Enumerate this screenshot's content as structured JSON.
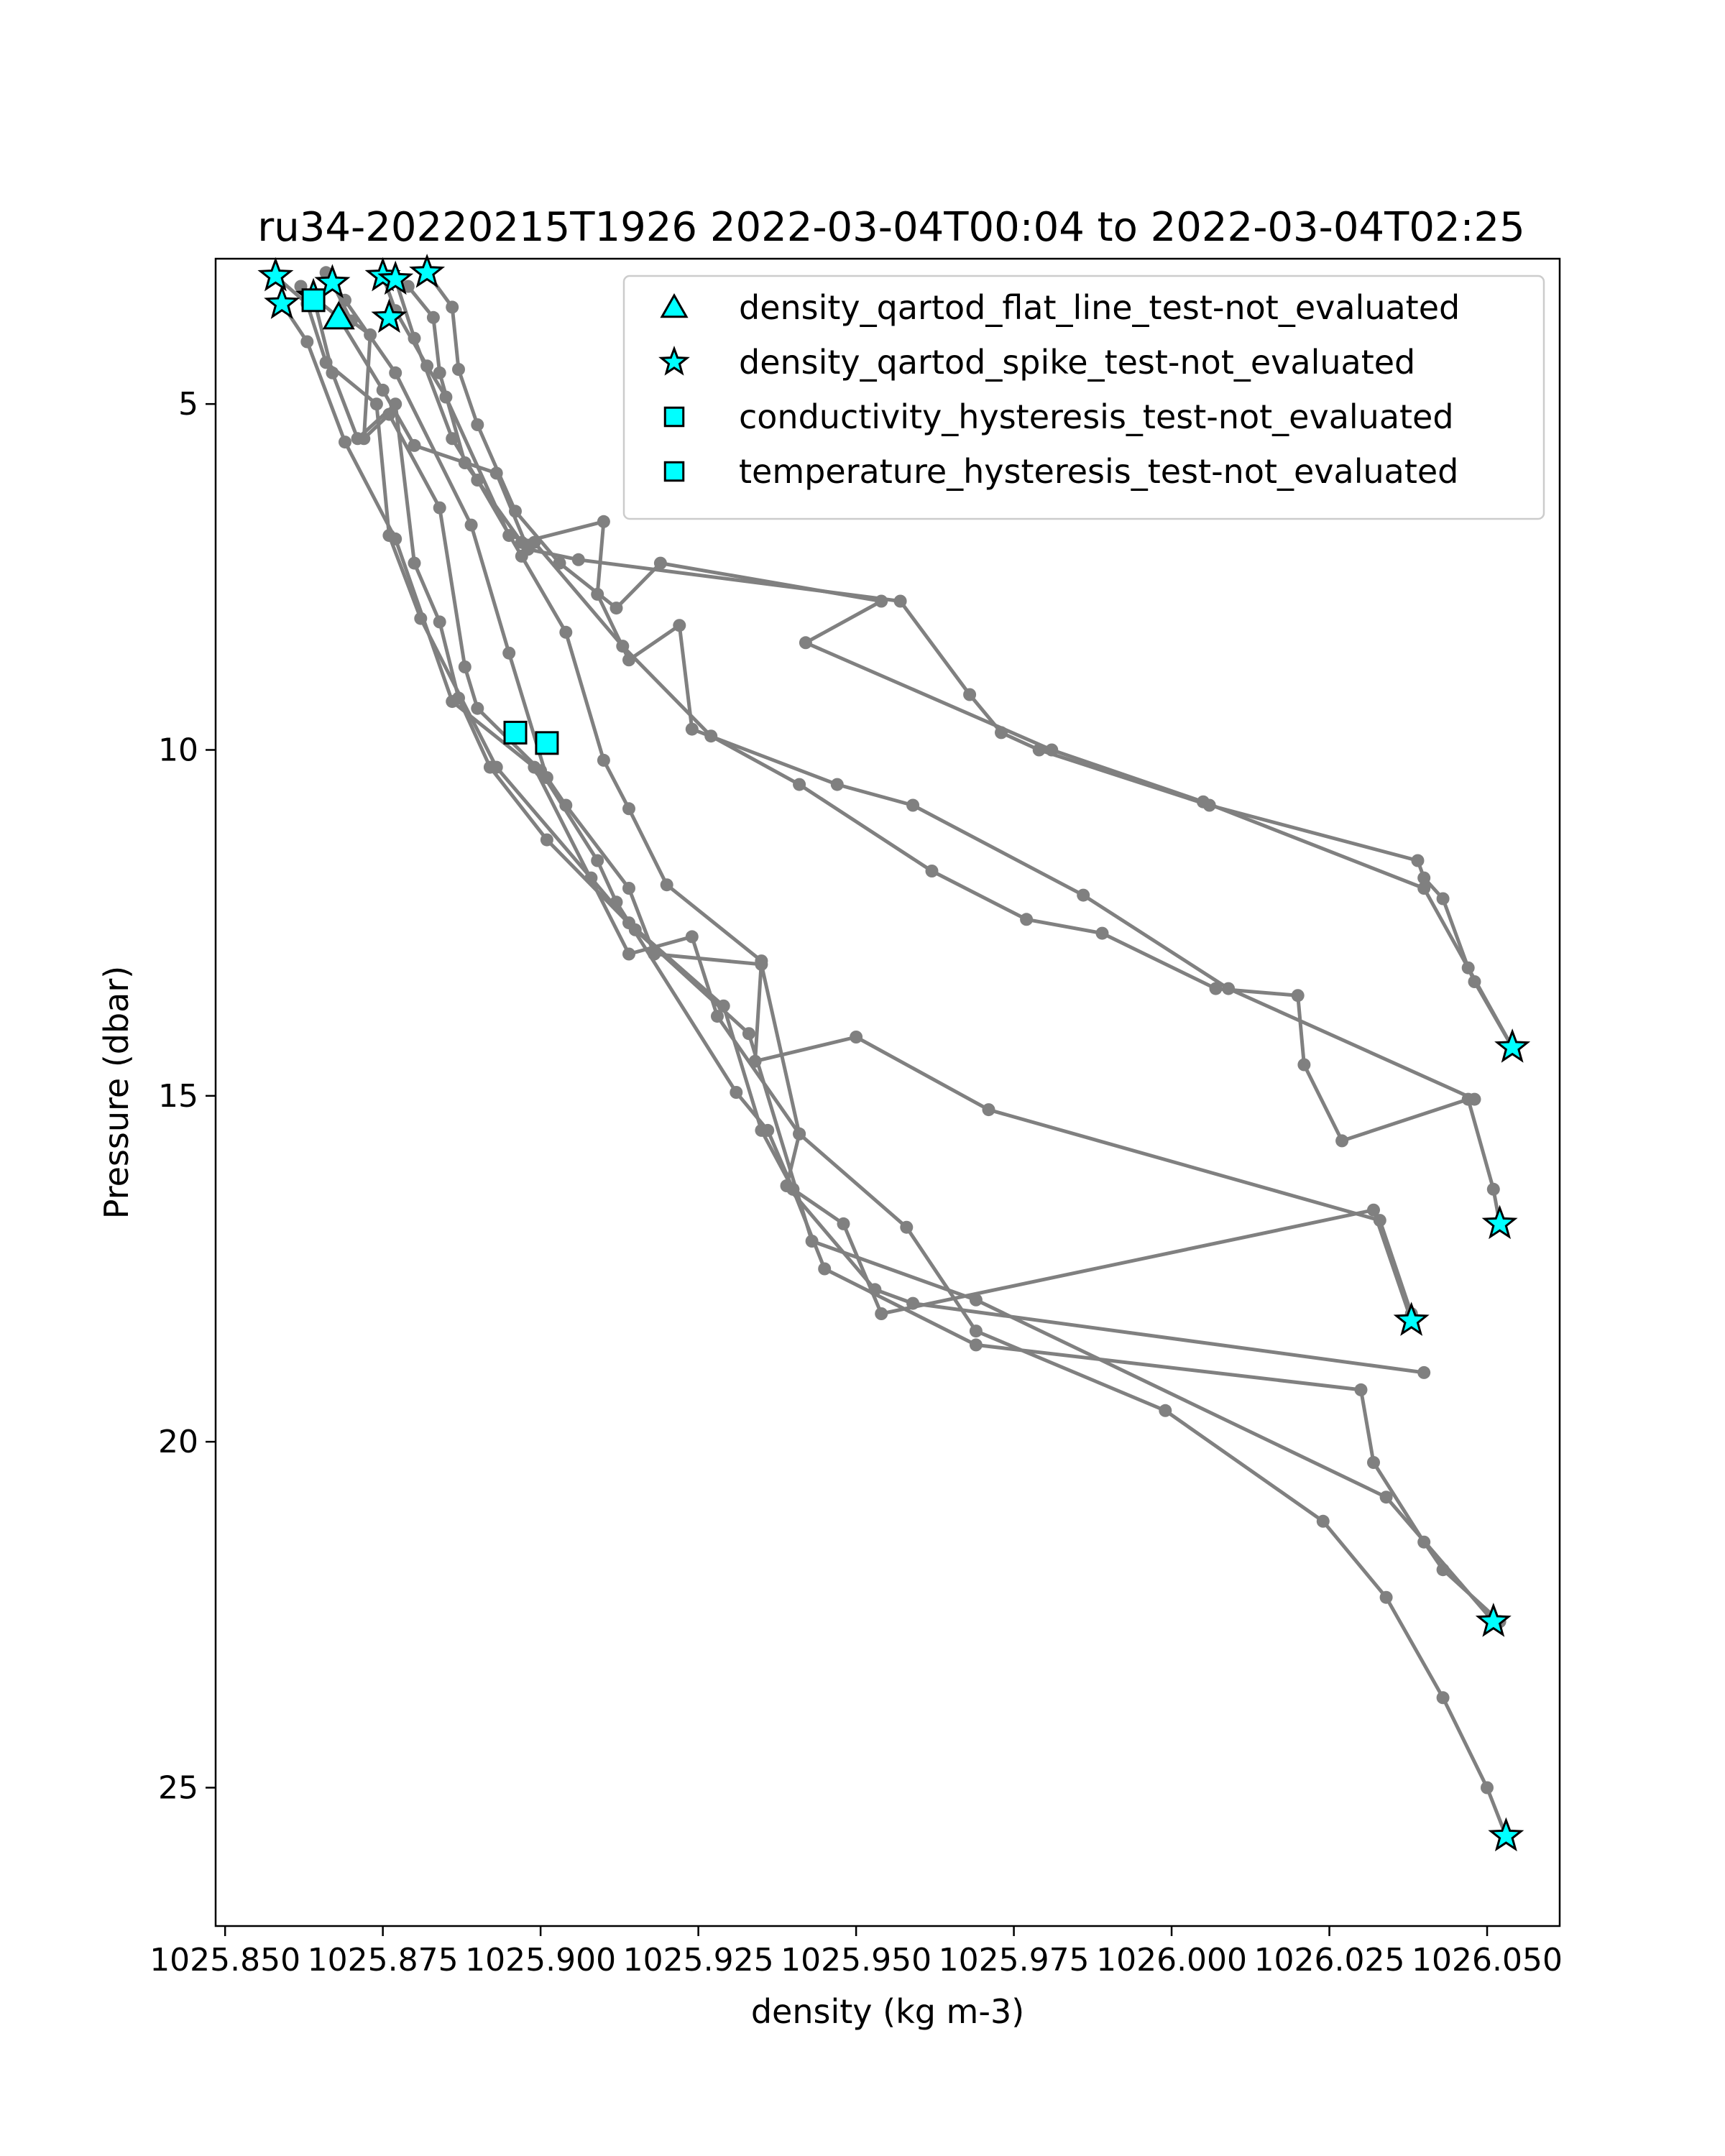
{
  "chart_data": {
    "type": "line",
    "title": "ru34-20220215T1926 2022-03-04T00:04 to 2022-03-04T02:25",
    "xlabel": "density (kg m-3)",
    "ylabel": "Pressure (dbar)",
    "xlim": [
      1025.8485,
      1026.0615
    ],
    "ylim": [
      27.0,
      2.9
    ],
    "y_inverted": true,
    "xticks": [
      1025.85,
      1025.875,
      1025.9,
      1025.925,
      1025.95,
      1025.975,
      1026.0,
      1026.025,
      1026.05
    ],
    "xtick_labels": [
      "1025.850",
      "1025.875",
      "1025.900",
      "1025.925",
      "1025.950",
      "1025.975",
      "1026.000",
      "1026.025",
      "1026.050"
    ],
    "yticks": [
      5,
      10,
      15,
      20,
      25
    ],
    "ytick_labels": [
      "5",
      "10",
      "15",
      "20",
      "25"
    ],
    "grid": false,
    "legend_position": "top-right",
    "colors": {
      "profile_line": "#808080",
      "marker_fill": "#00ffff",
      "marker_edge": "#000000"
    },
    "profiles": [
      {
        "points": [
          [
            1025.858,
            3.15
          ],
          [
            1025.863,
            3.55
          ],
          [
            1025.866,
            4.4
          ],
          [
            1025.874,
            5.0
          ],
          [
            1025.876,
            6.9
          ],
          [
            1025.881,
            8.1
          ],
          [
            1025.893,
            10.25
          ],
          [
            1025.908,
            11.85
          ],
          [
            1025.914,
            12.5
          ],
          [
            1025.929,
            13.7
          ],
          [
            1025.935,
            15.5
          ],
          [
            1025.94,
            16.35
          ],
          [
            1025.945,
            17.5
          ],
          [
            1025.969,
            18.6
          ],
          [
            1026.03,
            19.25
          ],
          [
            1026.032,
            20.3
          ],
          [
            1026.04,
            21.45
          ],
          [
            1026.043,
            21.85
          ],
          [
            1026.052,
            22.6
          ]
        ]
      },
      {
        "points": [
          [
            1025.859,
            3.55
          ],
          [
            1025.863,
            4.1
          ],
          [
            1025.869,
            5.55
          ],
          [
            1025.877,
            6.95
          ],
          [
            1025.886,
            9.3
          ],
          [
            1025.899,
            10.25
          ],
          [
            1025.914,
            12.95
          ],
          [
            1025.924,
            12.7
          ],
          [
            1025.928,
            13.85
          ],
          [
            1025.941,
            15.55
          ],
          [
            1025.958,
            16.9
          ],
          [
            1025.969,
            18.4
          ],
          [
            1025.999,
            19.55
          ],
          [
            1026.024,
            21.15
          ],
          [
            1026.034,
            22.25
          ],
          [
            1026.043,
            23.7
          ],
          [
            1026.05,
            25.0
          ],
          [
            1026.053,
            25.7
          ]
        ]
      },
      {
        "points": [
          [
            1025.864,
            3.45
          ],
          [
            1025.867,
            4.55
          ],
          [
            1025.871,
            5.5
          ],
          [
            1025.877,
            5.0
          ],
          [
            1025.88,
            7.3
          ],
          [
            1025.884,
            8.15
          ],
          [
            1025.887,
            9.25
          ],
          [
            1025.892,
            10.25
          ],
          [
            1025.901,
            11.3
          ],
          [
            1025.915,
            12.6
          ],
          [
            1025.933,
            14.1
          ],
          [
            1025.943,
            17.1
          ],
          [
            1025.969,
            17.95
          ],
          [
            1026.034,
            20.8
          ],
          [
            1026.051,
            22.6
          ]
        ]
      },
      {
        "points": [
          [
            1025.867,
            3.25
          ],
          [
            1025.87,
            3.8
          ],
          [
            1025.873,
            4.0
          ],
          [
            1025.872,
            5.5
          ],
          [
            1025.876,
            5.15
          ],
          [
            1025.884,
            6.5
          ],
          [
            1025.888,
            8.8
          ],
          [
            1025.89,
            9.4
          ],
          [
            1025.9,
            10.3
          ],
          [
            1025.909,
            11.6
          ],
          [
            1025.912,
            12.2
          ],
          [
            1025.931,
            14.95
          ],
          [
            1025.936,
            15.5
          ],
          [
            1025.94,
            16.35
          ],
          [
            1025.948,
            16.85
          ],
          [
            1025.954,
            18.15
          ],
          [
            1026.032,
            16.65
          ],
          [
            1026.038,
            18.25
          ]
        ]
      },
      {
        "points": [
          [
            1025.862,
            3.3
          ],
          [
            1025.868,
            3.75
          ],
          [
            1025.875,
            4.8
          ],
          [
            1025.88,
            5.6
          ],
          [
            1025.893,
            6.0
          ],
          [
            1025.898,
            7.1
          ],
          [
            1025.906,
            7.25
          ],
          [
            1025.957,
            7.85
          ],
          [
            1025.968,
            9.2
          ],
          [
            1025.973,
            9.75
          ],
          [
            1025.979,
            10.0
          ],
          [
            1026.006,
            10.8
          ],
          [
            1026.039,
            11.6
          ],
          [
            1026.04,
            11.85
          ],
          [
            1026.043,
            12.15
          ],
          [
            1026.047,
            13.15
          ],
          [
            1026.048,
            13.35
          ],
          [
            1026.054,
            14.3
          ]
        ]
      },
      {
        "points": [
          [
            1025.866,
            3.1
          ],
          [
            1025.869,
            3.5
          ],
          [
            1025.877,
            4.55
          ],
          [
            1025.889,
            6.75
          ],
          [
            1025.895,
            8.6
          ],
          [
            1025.901,
            10.4
          ],
          [
            1025.904,
            10.8
          ],
          [
            1025.914,
            12.0
          ],
          [
            1025.918,
            12.95
          ],
          [
            1025.935,
            13.1
          ],
          [
            1025.941,
            15.55
          ],
          [
            1025.939,
            16.3
          ],
          [
            1025.953,
            17.8
          ],
          [
            1025.959,
            18.0
          ],
          [
            1026.04,
            19.0
          ]
        ]
      },
      {
        "points": [
          [
            1025.875,
            3.15
          ],
          [
            1025.877,
            3.65
          ],
          [
            1025.882,
            4.45
          ],
          [
            1025.885,
            4.9
          ],
          [
            1025.895,
            6.9
          ],
          [
            1025.899,
            7.0
          ],
          [
            1025.913,
            8.5
          ],
          [
            1025.927,
            9.8
          ],
          [
            1025.941,
            10.5
          ],
          [
            1025.962,
            11.75
          ],
          [
            1025.977,
            12.45
          ],
          [
            1025.989,
            12.65
          ],
          [
            1026.007,
            13.45
          ],
          [
            1026.02,
            13.55
          ],
          [
            1026.021,
            14.55
          ],
          [
            1026.027,
            15.65
          ],
          [
            1026.047,
            15.05
          ],
          [
            1026.051,
            16.35
          ],
          [
            1026.052,
            16.85
          ]
        ]
      },
      {
        "points": [
          [
            1025.877,
            3.2
          ],
          [
            1025.88,
            4.05
          ],
          [
            1025.886,
            5.5
          ],
          [
            1025.89,
            6.1
          ],
          [
            1025.897,
            7.2
          ],
          [
            1025.904,
            8.3
          ],
          [
            1025.91,
            10.15
          ],
          [
            1025.914,
            10.85
          ],
          [
            1025.92,
            11.95
          ],
          [
            1025.935,
            13.05
          ],
          [
            1025.934,
            14.5
          ],
          [
            1025.95,
            14.15
          ],
          [
            1025.971,
            15.2
          ],
          [
            1026.033,
            16.8
          ],
          [
            1026.038,
            18.15
          ]
        ]
      },
      {
        "points": [
          [
            1025.879,
            3.3
          ],
          [
            1025.883,
            3.75
          ],
          [
            1025.884,
            4.55
          ],
          [
            1025.888,
            5.85
          ],
          [
            1025.897,
            7.0
          ],
          [
            1025.91,
            6.7
          ],
          [
            1025.909,
            7.75
          ],
          [
            1025.914,
            8.7
          ],
          [
            1025.922,
            8.2
          ],
          [
            1025.924,
            9.7
          ],
          [
            1025.947,
            10.5
          ],
          [
            1025.959,
            10.8
          ],
          [
            1025.986,
            12.1
          ],
          [
            1026.009,
            13.45
          ],
          [
            1026.048,
            15.05
          ]
        ]
      },
      {
        "points": [
          [
            1025.882,
            3.1
          ],
          [
            1025.886,
            3.6
          ],
          [
            1025.887,
            4.5
          ],
          [
            1025.89,
            5.3
          ],
          [
            1025.896,
            6.55
          ],
          [
            1025.903,
            7.3
          ],
          [
            1025.912,
            7.95
          ],
          [
            1025.919,
            7.3
          ],
          [
            1025.954,
            7.85
          ],
          [
            1025.942,
            8.45
          ],
          [
            1025.981,
            10.0
          ],
          [
            1026.005,
            10.75
          ],
          [
            1026.04,
            12.0
          ],
          [
            1026.054,
            14.3
          ]
        ]
      }
    ],
    "flag_markers": [
      {
        "marker": "star",
        "points": [
          [
            1025.858,
            3.15
          ],
          [
            1025.859,
            3.55
          ],
          [
            1025.864,
            3.45
          ],
          [
            1025.867,
            3.25
          ],
          [
            1025.875,
            3.15
          ],
          [
            1025.877,
            3.2
          ],
          [
            1025.882,
            3.1
          ],
          [
            1025.876,
            3.75
          ],
          [
            1026.054,
            14.3
          ],
          [
            1026.052,
            16.85
          ],
          [
            1026.038,
            18.25
          ],
          [
            1026.051,
            22.6
          ],
          [
            1026.053,
            25.7
          ]
        ]
      },
      {
        "marker": "triangle",
        "points": [
          [
            1025.868,
            3.75
          ]
        ]
      },
      {
        "marker": "square",
        "points": [
          [
            1025.864,
            3.5
          ],
          [
            1025.896,
            9.75
          ],
          [
            1025.901,
            9.9
          ]
        ]
      }
    ],
    "legend": [
      {
        "marker": "triangle",
        "label": "density_qartod_flat_line_test-not_evaluated"
      },
      {
        "marker": "star",
        "label": "density_qartod_spike_test-not_evaluated"
      },
      {
        "marker": "square",
        "label": "conductivity_hysteresis_test-not_evaluated"
      },
      {
        "marker": "square",
        "label": "temperature_hysteresis_test-not_evaluated"
      }
    ]
  }
}
